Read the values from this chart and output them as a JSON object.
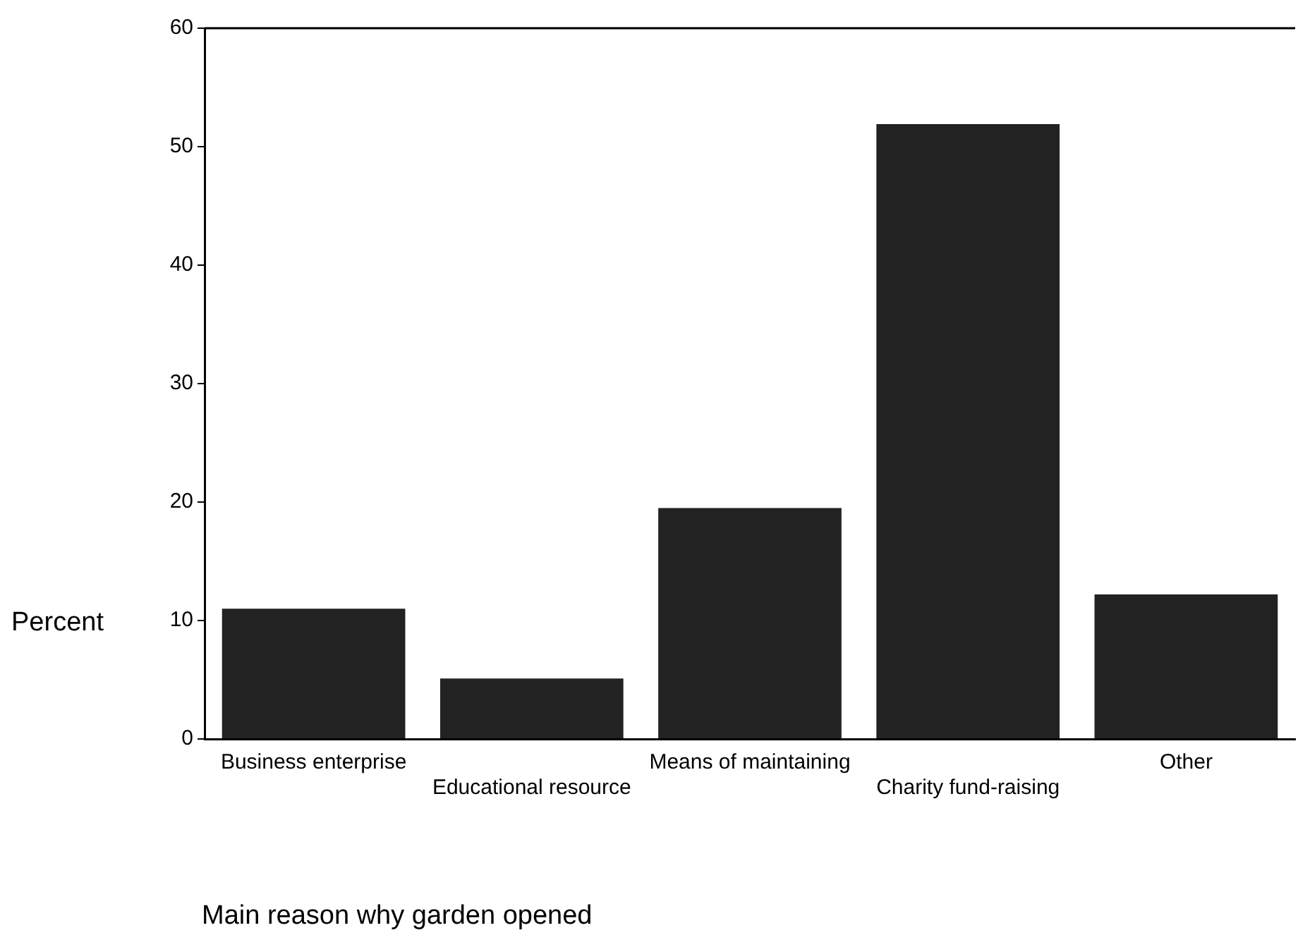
{
  "chart_data": {
    "type": "bar",
    "xlabel": "Main reason why garden opened",
    "ylabel": "Percent",
    "categories": [
      "Business enterprise",
      "Educational resource",
      "Means of maintaining",
      "Charity fund-raising",
      "Other"
    ],
    "values": [
      11.0,
      5.1,
      19.5,
      51.9,
      12.2
    ],
    "color": "#222222",
    "ylim": [
      0,
      60
    ],
    "yticks": [
      0,
      10,
      20,
      30,
      40,
      50,
      60
    ],
    "grid": false,
    "legend": false
  }
}
